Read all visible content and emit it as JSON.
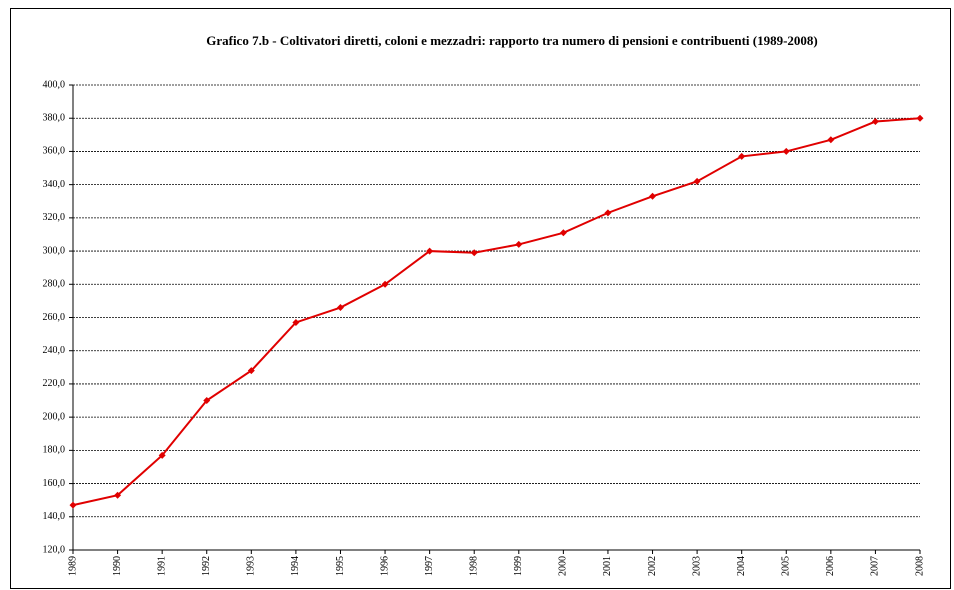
{
  "chart_data": {
    "type": "line",
    "title": "Grafico 7.b  -  Coltivatori diretti, coloni e mezzadri: rapporto tra numero di pensioni e contribuenti  (1989-2008)",
    "categories": [
      "1989",
      "1990",
      "1991",
      "1992",
      "1993",
      "1994",
      "1995",
      "1996",
      "1997",
      "1998",
      "1999",
      "2000",
      "2001",
      "2002",
      "2003",
      "2004",
      "2005",
      "2006",
      "2007",
      "2008"
    ],
    "series": [
      {
        "color": "#e00000",
        "values": [
          147,
          153,
          177,
          210,
          228,
          257,
          266,
          280,
          300,
          299,
          304,
          311,
          323,
          333,
          342,
          357,
          360,
          367,
          378,
          380
        ]
      }
    ],
    "ylim": [
      120,
      400
    ],
    "yticks": [
      {
        "value": 120,
        "label": "120,0"
      },
      {
        "value": 140,
        "label": "140,0"
      },
      {
        "value": 160,
        "label": "160,0"
      },
      {
        "value": 180,
        "label": "180,0"
      },
      {
        "value": 200,
        "label": "200,0"
      },
      {
        "value": 220,
        "label": "220,0"
      },
      {
        "value": 240,
        "label": "240,0"
      },
      {
        "value": 260,
        "label": "260,0"
      },
      {
        "value": 280,
        "label": "280,0"
      },
      {
        "value": 300,
        "label": "300,0"
      },
      {
        "value": 320,
        "label": "320,0"
      },
      {
        "value": 340,
        "label": "340,0"
      },
      {
        "value": 360,
        "label": "360,0"
      },
      {
        "value": 380,
        "label": "380,0"
      },
      {
        "value": 400,
        "label": "400,0"
      }
    ],
    "grid": true
  }
}
